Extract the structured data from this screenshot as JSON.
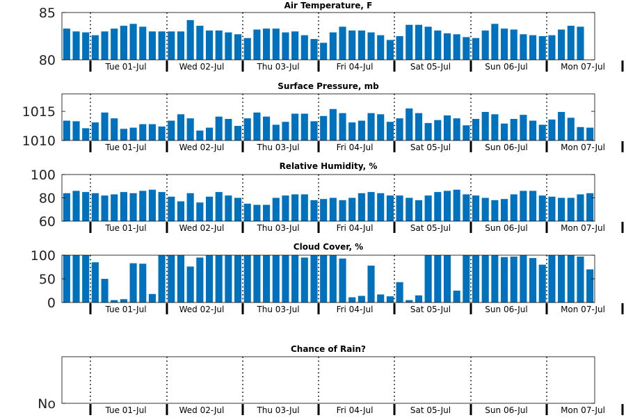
{
  "chart_data": [
    {
      "type": "bar",
      "title": "Air Temperature, F",
      "ylim": [
        80,
        85
      ],
      "yticks": [
        "80",
        "85"
      ],
      "day_labels": [
        "Tue 01-Jul",
        "Wed 02-Jul",
        "Thu 03-Jul",
        "Fri 04-Jul",
        "Sat 05-Jul",
        "Sun 06-Jul",
        "Mon 07-Jul"
      ],
      "values": [
        83.3,
        83.0,
        82.9,
        82.6,
        83.0,
        83.3,
        83.6,
        83.8,
        83.5,
        83.0,
        83.0,
        83.0,
        83.0,
        84.2,
        83.6,
        83.1,
        83.1,
        82.9,
        82.7,
        82.3,
        83.2,
        83.3,
        83.3,
        82.9,
        83.0,
        82.6,
        82.2,
        81.8,
        82.9,
        83.5,
        83.1,
        83.1,
        82.9,
        82.6,
        82.1,
        82.5,
        83.7,
        83.7,
        83.5,
        83.1,
        82.8,
        82.7,
        82.4,
        82.3,
        83.1,
        83.8,
        83.3,
        83.2,
        82.7,
        82.6,
        82.5,
        82.6,
        83.2,
        83.6,
        83.5
      ]
    },
    {
      "type": "bar",
      "title": "Surface Pressure, mb",
      "ylim": [
        1010,
        1018
      ],
      "yticks": [
        "1010",
        "1015"
      ],
      "day_labels": [
        "Tue 01-Jul",
        "Wed 02-Jul",
        "Thu 03-Jul",
        "Fri 04-Jul",
        "Sat 05-Jul",
        "Sun 06-Jul",
        "Mon 07-Jul"
      ],
      "values": [
        1013.4,
        1013.3,
        1012.1,
        1013.1,
        1014.8,
        1013.8,
        1012.0,
        1012.2,
        1012.8,
        1012.8,
        1012.4,
        1013.4,
        1014.5,
        1013.8,
        1011.7,
        1012.2,
        1014.1,
        1013.7,
        1012.5,
        1013.8,
        1014.8,
        1014.1,
        1012.7,
        1013.2,
        1014.6,
        1014.6,
        1013.3,
        1014.2,
        1015.4,
        1014.7,
        1013.1,
        1013.4,
        1014.7,
        1014.5,
        1013.2,
        1013.8,
        1015.5,
        1014.7,
        1013.0,
        1013.5,
        1014.3,
        1013.8,
        1012.6,
        1013.7,
        1014.9,
        1014.5,
        1012.9,
        1013.7,
        1014.4,
        1013.4,
        1012.7,
        1013.6,
        1014.9,
        1013.9,
        1012.3,
        1012.2
      ]
    },
    {
      "type": "bar",
      "title": "Relative Humidity, %",
      "ylim": [
        60,
        100
      ],
      "yticks": [
        "60",
        "80",
        "100"
      ],
      "day_labels": [
        "Tue 01-Jul",
        "Wed 02-Jul",
        "Thu 03-Jul",
        "Fri 04-Jul",
        "Sat 05-Jul",
        "Sun 06-Jul",
        "Mon 07-Jul"
      ],
      "values": [
        84,
        86,
        85,
        84,
        82,
        83,
        85,
        84,
        86,
        87,
        85,
        81,
        77,
        84,
        76,
        81,
        85,
        82,
        80,
        75,
        74,
        74,
        80,
        82,
        83,
        83,
        78,
        79,
        80,
        78,
        80,
        84,
        85,
        84,
        82,
        82,
        80,
        78,
        82,
        85,
        86,
        87,
        83,
        82,
        80,
        78,
        79,
        83,
        86,
        86,
        82,
        81,
        80,
        80,
        83,
        84
      ]
    },
    {
      "type": "bar",
      "title": "Cloud Cover, %",
      "ylim": [
        0,
        100
      ],
      "yticks": [
        "0",
        "50",
        "100"
      ],
      "day_labels": [
        "Tue 01-Jul",
        "Wed 02-Jul",
        "Thu 03-Jul",
        "Fri 04-Jul",
        "Sat 05-Jul",
        "Sun 06-Jul",
        "Mon 07-Jul"
      ],
      "values": [
        100,
        100,
        100,
        85,
        50,
        5,
        7,
        83,
        82,
        18,
        100,
        100,
        100,
        76,
        95,
        100,
        100,
        100,
        100,
        100,
        100,
        100,
        100,
        100,
        100,
        95,
        100,
        100,
        100,
        93,
        11,
        14,
        78,
        17,
        13,
        43,
        5,
        15,
        100,
        100,
        100,
        25,
        100,
        100,
        100,
        100,
        96,
        97,
        100,
        94,
        80,
        100,
        100,
        100,
        97,
        70
      ]
    },
    {
      "type": "bar",
      "title": "Chance of Rain?",
      "yticks": [
        "No"
      ],
      "day_labels": [
        "Tue 01-Jul",
        "Wed 02-Jul",
        "Thu 03-Jul",
        "Fri 04-Jul",
        "Sat 05-Jul",
        "Sun 06-Jul",
        "Mon 07-Jul"
      ],
      "values": []
    }
  ],
  "colors": {
    "bar": "#0072bd",
    "axis": "#000000",
    "grid": "#000000"
  }
}
